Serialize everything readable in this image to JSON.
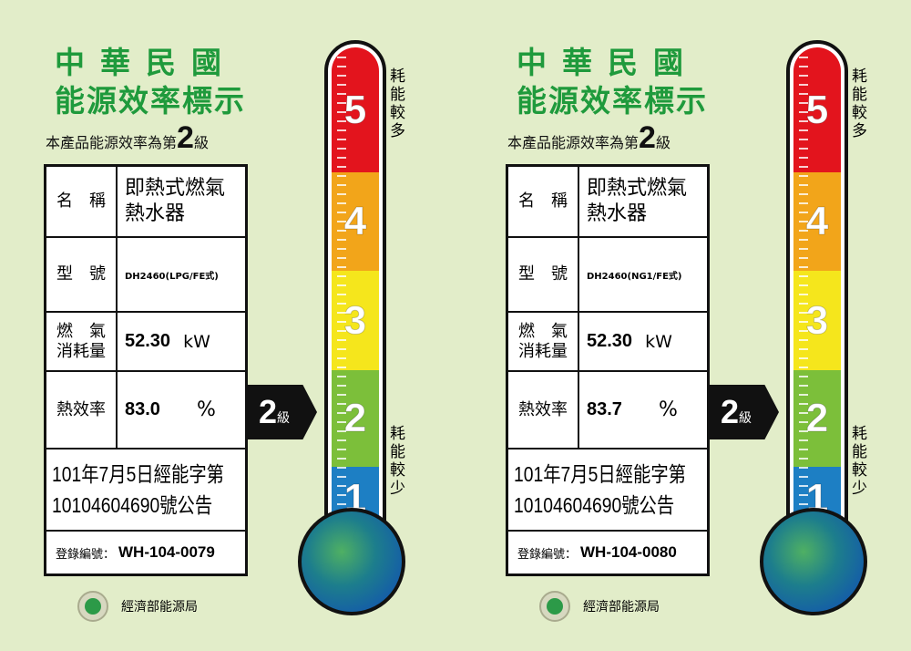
{
  "labels": [
    {
      "title_line1": "中華民國",
      "title_line2": "能源效率標示",
      "grade_text": "本產品能源效率為第",
      "grade": "2",
      "grade_unit": "級",
      "rows": {
        "name_key": "名　稱",
        "name_value": "即熱式燃氣熱水器",
        "model_key": "型　號",
        "model_value": "DH2460(LPG/FE式)",
        "gas_key": "燃　氣消耗量",
        "gas_value": "52.30",
        "gas_unit": "kW",
        "eff_key": "熱效率",
        "eff_value": "83.0",
        "eff_unit": "%"
      },
      "announcement": "101年7月5日經能字第10104604690號公告",
      "reg_label": "登錄編號：",
      "reg_number": "WH-104-0079",
      "agency": "經濟部能源局"
    },
    {
      "title_line1": "中華民國",
      "title_line2": "能源效率標示",
      "grade_text": "本產品能源效率為第",
      "grade": "2",
      "grade_unit": "級",
      "rows": {
        "name_key": "名　稱",
        "name_value": "即熱式燃氣熱水器",
        "model_key": "型　號",
        "model_value": "DH2460(NG1/FE式)",
        "gas_key": "燃　氣消耗量",
        "gas_value": "52.30",
        "gas_unit": "kW",
        "eff_key": "熱效率",
        "eff_value": "83.7",
        "eff_unit": "%"
      },
      "announcement": "101年7月5日經能字第10104604690號公告",
      "reg_label": "登錄編號：",
      "reg_number": "WH-104-0080",
      "agency": "經濟部能源局"
    }
  ],
  "scale": {
    "levels": [
      {
        "level": "5",
        "color": "#e3141d"
      },
      {
        "level": "4",
        "color": "#f2a51a"
      },
      {
        "level": "3",
        "color": "#f5e61c"
      },
      {
        "level": "2",
        "color": "#7cbf3a"
      },
      {
        "level": "1",
        "color": "#1d7fc4"
      }
    ],
    "more_label": "耗能較多",
    "less_label": "耗能較少",
    "title_color": "#1f9a3c"
  }
}
